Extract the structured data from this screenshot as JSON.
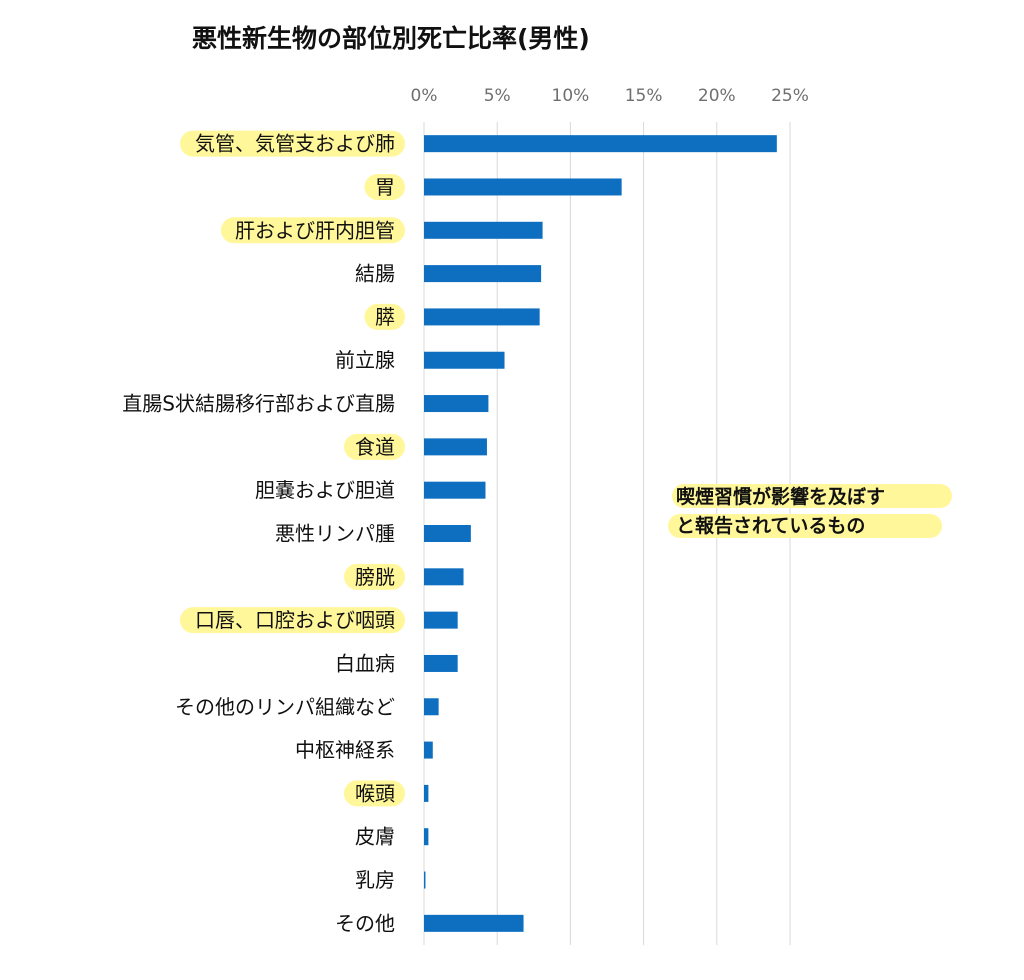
{
  "chart_data": {
    "type": "bar",
    "orientation": "horizontal",
    "title": "悪性新生物の部位別死亡比率(男性)",
    "xlabel": "",
    "ylabel": "",
    "xlim": [
      0,
      0.25
    ],
    "x_ticks": [
      "0%",
      "5%",
      "10%",
      "15%",
      "20%",
      "25%"
    ],
    "grid": true,
    "bar_color": "#0e6fc1",
    "highlight_color": "#fff79a",
    "categories": [
      "気管、気管支および肺",
      "胃",
      "肝および肝内胆管",
      "結腸",
      "膵",
      "前立腺",
      "直腸S状結腸移行部および直腸",
      "食道",
      "胆嚢および胆道",
      "悪性リンパ腫",
      "膀胱",
      "口唇、口腔および咽頭",
      "白血病",
      "その他のリンパ組織など",
      "中枢神経系",
      "喉頭",
      "皮膚",
      "乳房",
      "その他"
    ],
    "values": [
      0.241,
      0.135,
      0.081,
      0.08,
      0.079,
      0.055,
      0.044,
      0.043,
      0.042,
      0.032,
      0.027,
      0.023,
      0.023,
      0.01,
      0.006,
      0.003,
      0.003,
      0.001,
      0.068
    ],
    "highlighted": [
      true,
      true,
      true,
      false,
      true,
      false,
      false,
      true,
      false,
      false,
      true,
      true,
      false,
      false,
      false,
      true,
      false,
      false,
      false
    ],
    "annotation": [
      "喫煙習慣が影響を及ぼす",
      "と報告されているもの"
    ]
  }
}
